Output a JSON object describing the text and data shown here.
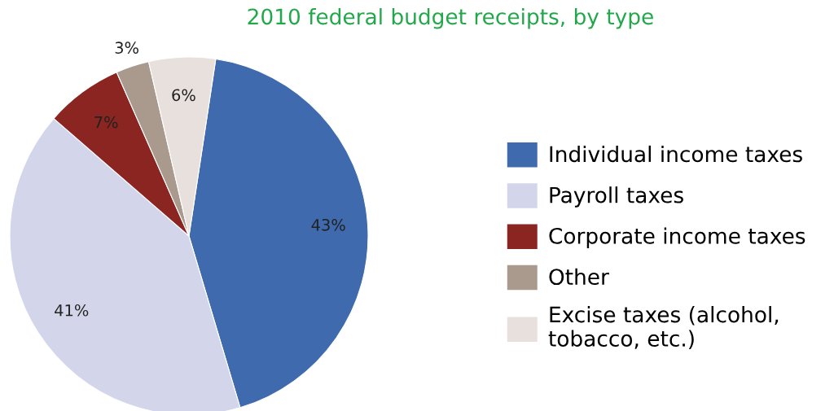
{
  "chart_data": {
    "type": "pie",
    "title": "2010 federal budget receipts, by type",
    "categories": [
      "Individual income taxes",
      "Payroll taxes",
      "Corporate income taxes",
      "Other",
      "Excise taxes (alcohol,\ntobacco, etc.)"
    ],
    "values": [
      43,
      41,
      7,
      3,
      6
    ],
    "colors": [
      "#3f6aae",
      "#d3d6ea",
      "#8b2522",
      "#a99a8d",
      "#e8e0dc"
    ],
    "value_labels": [
      "43%",
      "41%",
      "7%",
      "3%",
      "6%"
    ],
    "legend": "right"
  }
}
